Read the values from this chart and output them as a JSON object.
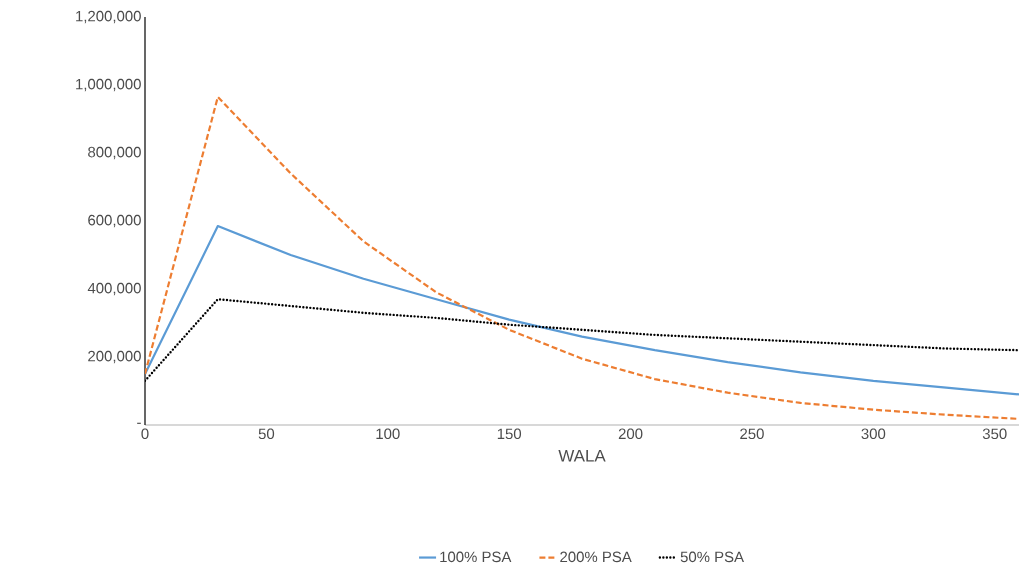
{
  "chart_data": {
    "type": "line",
    "xlabel": "WALA",
    "x": [
      0,
      30,
      60,
      90,
      120,
      150,
      180,
      210,
      240,
      270,
      300,
      330,
      360
    ],
    "series": [
      {
        "name": "100% PSA",
        "color": "#5b9bd5",
        "line_style": "solid",
        "values": [
          150000,
          585000,
          500000,
          430000,
          370000,
          310000,
          260000,
          220000,
          185000,
          155000,
          130000,
          110000,
          90000
        ]
      },
      {
        "name": "200% PSA",
        "color": "#ed7d31",
        "line_style": "dashed",
        "values": [
          150000,
          965000,
          740000,
          540000,
          390000,
          280000,
          195000,
          135000,
          95000,
          65000,
          45000,
          30000,
          18000
        ]
      },
      {
        "name": "50% PSA",
        "color": "#000000",
        "line_style": "dotted",
        "values": [
          130000,
          370000,
          350000,
          330000,
          315000,
          295000,
          280000,
          265000,
          255000,
          245000,
          235000,
          225000,
          220000
        ]
      }
    ],
    "xlim": [
      0,
      360
    ],
    "ylim": [
      0,
      1200000
    ],
    "xticks": [
      0,
      50,
      100,
      150,
      200,
      250,
      300,
      350
    ],
    "yticks": [
      {
        "value": 0,
        "label": "-"
      },
      {
        "value": 200000,
        "label": "200,000"
      },
      {
        "value": 400000,
        "label": "400,000"
      },
      {
        "value": 600000,
        "label": "600,000"
      },
      {
        "value": 800000,
        "label": "800,000"
      },
      {
        "value": 1000000,
        "label": "1,000,000"
      },
      {
        "value": 1200000,
        "label": "1,200,000"
      }
    ],
    "grid": false,
    "legend": "bottom",
    "marker": "none"
  }
}
